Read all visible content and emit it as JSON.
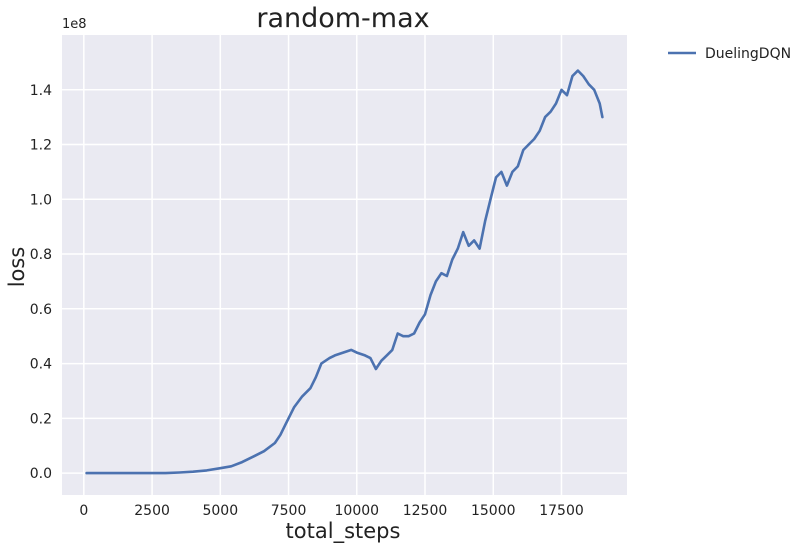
{
  "chart_data": {
    "type": "line",
    "title": "random-max",
    "xlabel": "total_steps",
    "ylabel": "loss",
    "y_offset_label": "1e8",
    "xlim": [
      -800,
      19900
    ],
    "ylim": [
      -0.08,
      1.6
    ],
    "x_ticks": [
      0,
      2500,
      5000,
      7500,
      10000,
      12500,
      15000,
      17500
    ],
    "x_tick_labels": [
      "0",
      "2500",
      "5000",
      "7500",
      "10000",
      "12500",
      "15000",
      "17500"
    ],
    "y_ticks": [
      0.0,
      0.2,
      0.4,
      0.6,
      0.8,
      1.0,
      1.2,
      1.4
    ],
    "y_tick_labels": [
      "0.0",
      "0.2",
      "0.4",
      "0.6",
      "0.8",
      "1.0",
      "1.2",
      "1.4"
    ],
    "grid": true,
    "legend_position": "outside-top-right",
    "series": [
      {
        "name": "DuelingDQN",
        "color": "#4c72b0",
        "x": [
          100,
          1000,
          2000,
          3000,
          3500,
          4000,
          4500,
          5000,
          5400,
          5800,
          6200,
          6600,
          7000,
          7200,
          7400,
          7700,
          8000,
          8300,
          8500,
          8700,
          9000,
          9200,
          9500,
          9800,
          10000,
          10300,
          10500,
          10700,
          10900,
          11100,
          11300,
          11500,
          11700,
          11900,
          12100,
          12300,
          12500,
          12700,
          12900,
          13100,
          13300,
          13500,
          13700,
          13900,
          14100,
          14300,
          14500,
          14700,
          14900,
          15100,
          15300,
          15500,
          15700,
          15900,
          16100,
          16300,
          16500,
          16700,
          16900,
          17100,
          17300,
          17500,
          17700,
          17900,
          18100,
          18300,
          18500,
          18700,
          18900,
          19000
        ],
        "y": [
          0.0,
          0.0,
          0.0,
          0.0,
          0.002,
          0.005,
          0.01,
          0.018,
          0.025,
          0.04,
          0.06,
          0.08,
          0.11,
          0.14,
          0.18,
          0.24,
          0.28,
          0.31,
          0.35,
          0.4,
          0.42,
          0.43,
          0.44,
          0.45,
          0.44,
          0.43,
          0.42,
          0.38,
          0.41,
          0.43,
          0.45,
          0.51,
          0.5,
          0.5,
          0.51,
          0.55,
          0.58,
          0.65,
          0.7,
          0.73,
          0.72,
          0.78,
          0.82,
          0.88,
          0.83,
          0.85,
          0.82,
          0.92,
          1.0,
          1.08,
          1.1,
          1.05,
          1.1,
          1.12,
          1.18,
          1.2,
          1.22,
          1.25,
          1.3,
          1.32,
          1.35,
          1.4,
          1.38,
          1.45,
          1.47,
          1.45,
          1.42,
          1.4,
          1.35,
          1.3
        ]
      }
    ]
  }
}
